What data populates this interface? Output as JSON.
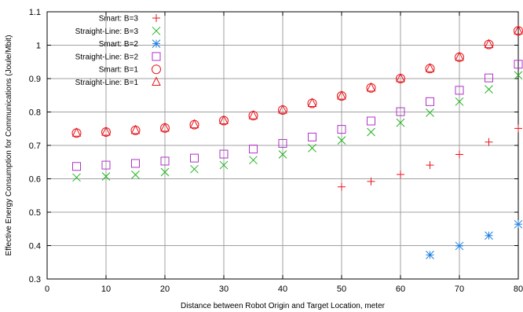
{
  "chart_data": {
    "type": "scatter",
    "title": "",
    "xlabel": "Distance between Robot Origin and Target Location, meter",
    "ylabel": "Effective Energy Consumption for Communications (Joule/Mbit)",
    "xlim": [
      0,
      80
    ],
    "ylim": [
      0.3,
      1.1
    ],
    "xticks": [
      0,
      10,
      20,
      30,
      40,
      50,
      60,
      70,
      80
    ],
    "yticks": [
      0.3,
      0.4,
      0.5,
      0.6,
      0.7,
      0.8,
      0.9,
      1,
      1.1
    ],
    "xtick_labels": [
      "0",
      "10",
      "20",
      "30",
      "40",
      "50",
      "60",
      "70",
      "80"
    ],
    "ytick_labels": [
      "0.3",
      "0.4",
      "0.5",
      "0.6",
      "0.7",
      "0.8",
      "0.9",
      "1",
      "1.1"
    ],
    "grid": true,
    "legend_position": "top-left",
    "series": [
      {
        "name": "Smart: B=3",
        "marker": "plus",
        "color": "#e8141b",
        "x": [
          50,
          55,
          60,
          65,
          70,
          75,
          80
        ],
        "y": [
          0.576,
          0.592,
          0.613,
          0.641,
          0.673,
          0.71,
          0.751
        ]
      },
      {
        "name": "Straight-Line: B=3",
        "marker": "cross",
        "color": "#1fb41f",
        "x": [
          5,
          10,
          15,
          20,
          25,
          30,
          35,
          40,
          45,
          50,
          55,
          60,
          65,
          70,
          75,
          80
        ],
        "y": [
          0.604,
          0.607,
          0.612,
          0.62,
          0.629,
          0.641,
          0.656,
          0.673,
          0.692,
          0.715,
          0.74,
          0.768,
          0.798,
          0.831,
          0.868,
          0.91
        ]
      },
      {
        "name": "Smart: B=2",
        "marker": "star",
        "color": "#1f7fe0",
        "x": [
          65,
          70,
          75,
          80
        ],
        "y": [
          0.372,
          0.399,
          0.43,
          0.464
        ]
      },
      {
        "name": "Straight-Line: B=2",
        "marker": "square",
        "color": "#b033c8",
        "x": [
          5,
          10,
          15,
          20,
          25,
          30,
          35,
          40,
          45,
          50,
          55,
          60,
          65,
          70,
          75,
          80
        ],
        "y": [
          0.637,
          0.641,
          0.646,
          0.653,
          0.662,
          0.674,
          0.689,
          0.706,
          0.725,
          0.748,
          0.773,
          0.801,
          0.831,
          0.865,
          0.902,
          0.943
        ]
      },
      {
        "name": "Smart: B=1",
        "marker": "circle",
        "color": "#e8141b",
        "x": [
          5,
          10,
          15,
          20,
          25,
          30,
          35,
          40,
          45,
          50,
          55,
          60,
          65,
          70,
          75,
          80
        ],
        "y": [
          0.737,
          0.74,
          0.745,
          0.752,
          0.762,
          0.774,
          0.789,
          0.806,
          0.826,
          0.848,
          0.872,
          0.9,
          0.93,
          0.964,
          1.002,
          1.043
        ]
      },
      {
        "name": "Straight-Line: B=1",
        "marker": "triangle",
        "color": "#e8141b",
        "x": [
          5,
          10,
          15,
          20,
          25,
          30,
          35,
          40,
          45,
          50,
          55,
          60,
          65,
          70,
          75,
          80
        ],
        "y": [
          0.737,
          0.74,
          0.745,
          0.752,
          0.762,
          0.774,
          0.789,
          0.806,
          0.826,
          0.848,
          0.872,
          0.9,
          0.93,
          0.964,
          1.002,
          1.043
        ]
      }
    ]
  }
}
